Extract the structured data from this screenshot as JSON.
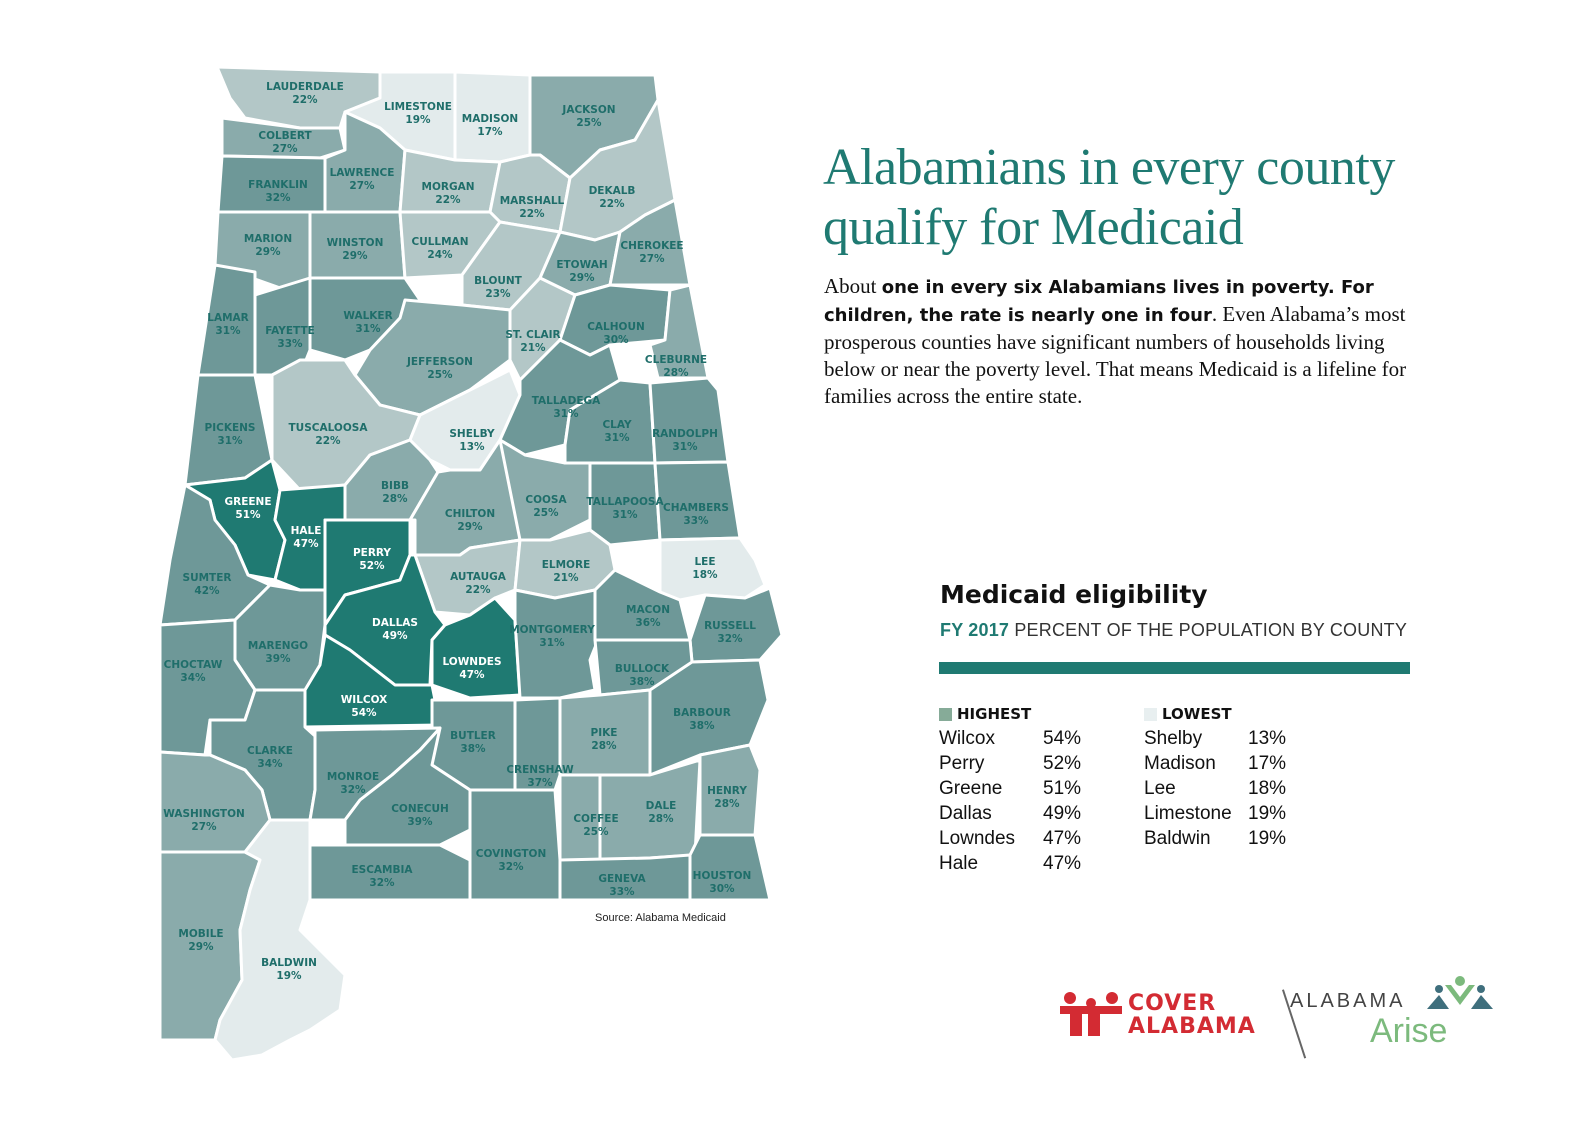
{
  "title": {
    "line1": "Alabamians in every county",
    "line2": "qualify for Medicaid"
  },
  "intro": {
    "p1": "About ",
    "b1": "one in every six Alabamians lives in poverty. For children, the rate is nearly one in four",
    "p2": ". Even Alabama’s most prosperous counties have significant numbers of households living below or near the poverty level. That means Medicaid is a lifeline for families across the entire state."
  },
  "legend": {
    "title": "Medicaid eligibility",
    "year": "FY 2017",
    "subtitle": "PERCENT OF THE POPULATION BY COUNTY",
    "highest_label": "HIGHEST",
    "lowest_label": "LOWEST",
    "highest_color": "#86ab98",
    "lowest_color": "#e8eff0",
    "rule_color": "#1f7a72",
    "highest": [
      {
        "name": "Wilcox",
        "value": "54%"
      },
      {
        "name": "Perry",
        "value": "52%"
      },
      {
        "name": "Greene",
        "value": "51%"
      },
      {
        "name": "Dallas",
        "value": "49%"
      },
      {
        "name": "Lowndes",
        "value": "47%"
      },
      {
        "name": "Hale",
        "value": "47%"
      }
    ],
    "lowest": [
      {
        "name": "Shelby",
        "value": "13%"
      },
      {
        "name": "Madison",
        "value": "17%"
      },
      {
        "name": "Lee",
        "value": "18%"
      },
      {
        "name": "Limestone",
        "value": "19%"
      },
      {
        "name": "Baldwin",
        "value": "19%"
      }
    ]
  },
  "source": "Source: Alabama Medicaid",
  "logos": {
    "cover_line1": "COVER",
    "cover_line2": "ALABAMA",
    "arise_top": "ALABAMA",
    "arise_bottom": "Arise"
  },
  "colors": {
    "darkest": "#1f7a72",
    "dark": "#6e9898",
    "medium": "#8aabab",
    "light": "#b3c7c7",
    "lightest": "#e3ebec",
    "label_on_light": "#1f6e6a",
    "label_on_dark": "#ffffff",
    "title": "#1f7a72",
    "cover_red": "#d32b33",
    "arise_green": "#7cba7d"
  },
  "counties": [
    {
      "name": "LAUDERDALE",
      "value": "22%"
    },
    {
      "name": "LIMESTONE",
      "value": "19%"
    },
    {
      "name": "MADISON",
      "value": "17%"
    },
    {
      "name": "JACKSON",
      "value": "25%"
    },
    {
      "name": "COLBERT",
      "value": "27%"
    },
    {
      "name": "FRANKLIN",
      "value": "32%"
    },
    {
      "name": "LAWRENCE",
      "value": "27%"
    },
    {
      "name": "MORGAN",
      "value": "22%"
    },
    {
      "name": "MARSHALL",
      "value": "22%"
    },
    {
      "name": "DEKALB",
      "value": "22%"
    },
    {
      "name": "MARION",
      "value": "29%"
    },
    {
      "name": "WINSTON",
      "value": "29%"
    },
    {
      "name": "CULLMAN",
      "value": "24%"
    },
    {
      "name": "BLOUNT",
      "value": "23%"
    },
    {
      "name": "ETOWAH",
      "value": "29%"
    },
    {
      "name": "CHEROKEE",
      "value": "27%"
    },
    {
      "name": "LAMAR",
      "value": "31%"
    },
    {
      "name": "FAYETTE",
      "value": "33%"
    },
    {
      "name": "WALKER",
      "value": "31%"
    },
    {
      "name": "JEFFERSON",
      "value": "25%"
    },
    {
      "name": "ST. CLAIR",
      "value": "21%"
    },
    {
      "name": "CALHOUN",
      "value": "30%"
    },
    {
      "name": "CLEBURNE",
      "value": "28%"
    },
    {
      "name": "PICKENS",
      "value": "31%"
    },
    {
      "name": "TUSCALOOSA",
      "value": "22%"
    },
    {
      "name": "SHELBY",
      "value": "13%"
    },
    {
      "name": "TALLADEGA",
      "value": "31%"
    },
    {
      "name": "CLAY",
      "value": "31%"
    },
    {
      "name": "RANDOLPH",
      "value": "31%"
    },
    {
      "name": "GREENE",
      "value": "51%"
    },
    {
      "name": "HALE",
      "value": "47%"
    },
    {
      "name": "BIBB",
      "value": "28%"
    },
    {
      "name": "CHILTON",
      "value": "29%"
    },
    {
      "name": "COOSA",
      "value": "25%"
    },
    {
      "name": "TALLAPOOSA",
      "value": "31%"
    },
    {
      "name": "CHAMBERS",
      "value": "33%"
    },
    {
      "name": "SUMTER",
      "value": "42%"
    },
    {
      "name": "PERRY",
      "value": "52%"
    },
    {
      "name": "AUTAUGA",
      "value": "22%"
    },
    {
      "name": "ELMORE",
      "value": "21%"
    },
    {
      "name": "LEE",
      "value": "18%"
    },
    {
      "name": "MARENGO",
      "value": "39%"
    },
    {
      "name": "DALLAS",
      "value": "49%"
    },
    {
      "name": "LOWNDES",
      "value": "47%"
    },
    {
      "name": "MONTGOMERY",
      "value": "31%"
    },
    {
      "name": "MACON",
      "value": "36%"
    },
    {
      "name": "RUSSELL",
      "value": "32%"
    },
    {
      "name": "CHOCTAW",
      "value": "34%"
    },
    {
      "name": "WILCOX",
      "value": "54%"
    },
    {
      "name": "BULLOCK",
      "value": "38%"
    },
    {
      "name": "BUTLER",
      "value": "38%"
    },
    {
      "name": "PIKE",
      "value": "28%"
    },
    {
      "name": "BARBOUR",
      "value": "38%"
    },
    {
      "name": "CLARKE",
      "value": "34%"
    },
    {
      "name": "MONROE",
      "value": "32%"
    },
    {
      "name": "CRENSHAW",
      "value": "37%"
    },
    {
      "name": "WASHINGTON",
      "value": "27%"
    },
    {
      "name": "CONECUH",
      "value": "39%"
    },
    {
      "name": "COFFEE",
      "value": "25%"
    },
    {
      "name": "DALE",
      "value": "28%"
    },
    {
      "name": "HENRY",
      "value": "28%"
    },
    {
      "name": "COVINGTON",
      "value": "32%"
    },
    {
      "name": "ESCAMBIA",
      "value": "32%"
    },
    {
      "name": "GENEVA",
      "value": "33%"
    },
    {
      "name": "HOUSTON",
      "value": "30%"
    },
    {
      "name": "MOBILE",
      "value": "29%"
    },
    {
      "name": "BALDWIN",
      "value": "19%"
    }
  ]
}
